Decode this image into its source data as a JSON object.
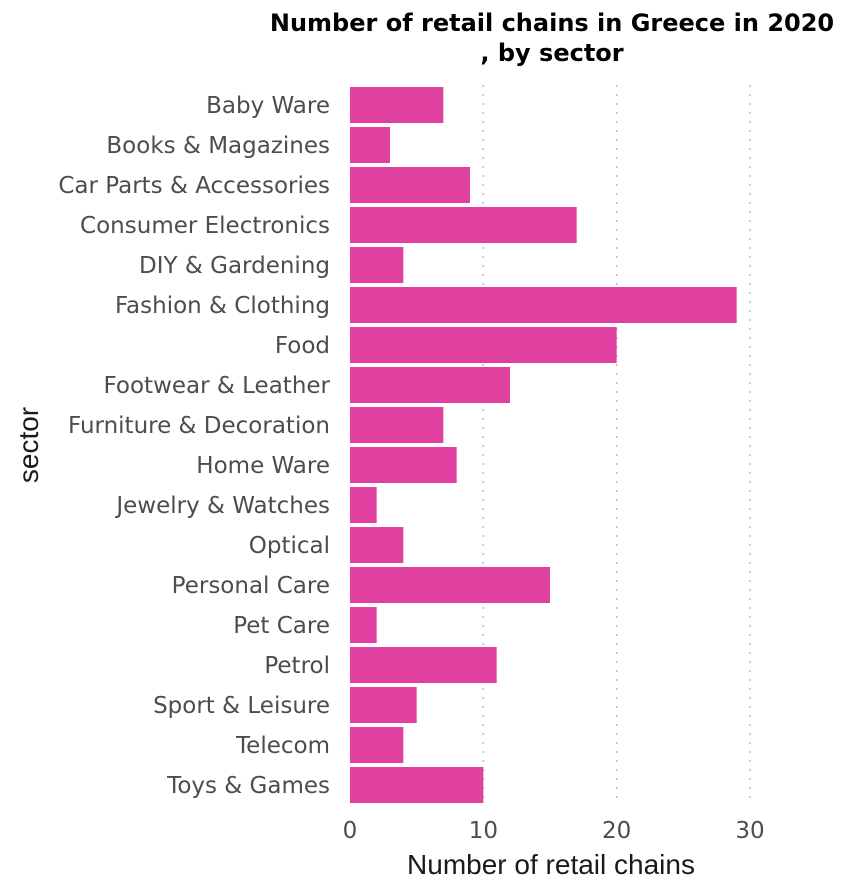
{
  "chart_data": {
    "type": "bar",
    "orientation": "horizontal",
    "title_lines": [
      "Number of retail chains in Greece in 2020",
      ", by sector"
    ],
    "xlabel": "Number of retail chains",
    "ylabel": "sector",
    "xlim": [
      0,
      30
    ],
    "xticks": [
      0,
      10,
      20,
      30
    ],
    "grid": "vertical dotted",
    "bar_color": "#e0409f",
    "categories": [
      "Baby Ware",
      "Books & Magazines",
      "Car Parts & Accessories",
      "Consumer Electronics",
      "DIY & Gardening",
      "Fashion & Clothing",
      "Food",
      "Footwear & Leather",
      "Furniture & Decoration",
      "Home Ware",
      "Jewelry & Watches",
      "Optical",
      "Personal Care",
      "Pet Care",
      "Petrol",
      "Sport & Leisure",
      "Telecom",
      "Toys & Games"
    ],
    "values": [
      7,
      3,
      9,
      17,
      4,
      29,
      20,
      12,
      7,
      8,
      2,
      4,
      15,
      2,
      11,
      5,
      4,
      10
    ]
  }
}
